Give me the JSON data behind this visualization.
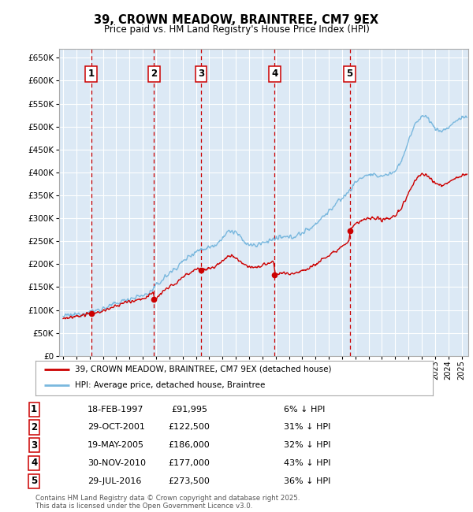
{
  "title": "39, CROWN MEADOW, BRAINTREE, CM7 9EX",
  "subtitle": "Price paid vs. HM Land Registry's House Price Index (HPI)",
  "ylim": [
    0,
    670000
  ],
  "yticks": [
    0,
    50000,
    100000,
    150000,
    200000,
    250000,
    300000,
    350000,
    400000,
    450000,
    500000,
    550000,
    600000,
    650000
  ],
  "background_color": "#dce9f5",
  "grid_color": "#ffffff",
  "hpi_color": "#7ab8de",
  "price_color": "#cc0000",
  "vline_color": "#cc0000",
  "sale_dates_x": [
    1997.12,
    2001.83,
    2005.38,
    2010.92,
    2016.57
  ],
  "sale_prices": [
    91995,
    122500,
    186000,
    177000,
    273500
  ],
  "sale_labels": [
    "1",
    "2",
    "3",
    "4",
    "5"
  ],
  "sale_info": [
    {
      "num": "1",
      "date": "18-FEB-1997",
      "price": "£91,995",
      "pct": "6% ↓ HPI"
    },
    {
      "num": "2",
      "date": "29-OCT-2001",
      "price": "£122,500",
      "pct": "31% ↓ HPI"
    },
    {
      "num": "3",
      "date": "19-MAY-2005",
      "price": "£186,000",
      "pct": "32% ↓ HPI"
    },
    {
      "num": "4",
      "date": "30-NOV-2010",
      "price": "£177,000",
      "pct": "43% ↓ HPI"
    },
    {
      "num": "5",
      "date": "29-JUL-2016",
      "price": "£273,500",
      "pct": "36% ↓ HPI"
    }
  ],
  "legend_price_label": "39, CROWN MEADOW, BRAINTREE, CM7 9EX (detached house)",
  "legend_hpi_label": "HPI: Average price, detached house, Braintree",
  "footer": "Contains HM Land Registry data © Crown copyright and database right 2025.\nThis data is licensed under the Open Government Licence v3.0.",
  "xlim_start": 1994.7,
  "xlim_end": 2025.5,
  "hpi_years": [
    1995,
    1995.5,
    1996,
    1996.5,
    1997,
    1997.5,
    1998,
    1998.5,
    1999,
    1999.5,
    2000,
    2000.5,
    2001,
    2001.5,
    2002,
    2002.5,
    2003,
    2003.5,
    2004,
    2004.5,
    2005,
    2005.5,
    2006,
    2006.5,
    2007,
    2007.5,
    2008,
    2008.5,
    2009,
    2009.5,
    2010,
    2010.5,
    2011,
    2011.5,
    2012,
    2012.5,
    2013,
    2013.5,
    2014,
    2014.5,
    2015,
    2015.5,
    2016,
    2016.5,
    2017,
    2017.5,
    2018,
    2018.5,
    2019,
    2019.5,
    2020,
    2020.5,
    2021,
    2021.5,
    2022,
    2022.5,
    2023,
    2023.5,
    2024,
    2024.5,
    2025
  ],
  "hpi_vals": [
    86000,
    88000,
    90000,
    93000,
    96000,
    99000,
    103000,
    108000,
    114000,
    120000,
    125000,
    128000,
    131000,
    138000,
    152000,
    167000,
    180000,
    192000,
    205000,
    218000,
    228000,
    233000,
    237000,
    243000,
    258000,
    272000,
    270000,
    252000,
    242000,
    240000,
    246000,
    252000,
    255000,
    258000,
    258000,
    262000,
    268000,
    276000,
    288000,
    302000,
    315000,
    330000,
    344000,
    358000,
    378000,
    390000,
    395000,
    392000,
    393000,
    396000,
    402000,
    428000,
    468000,
    505000,
    525000,
    518000,
    495000,
    490000,
    498000,
    510000,
    520000
  ]
}
